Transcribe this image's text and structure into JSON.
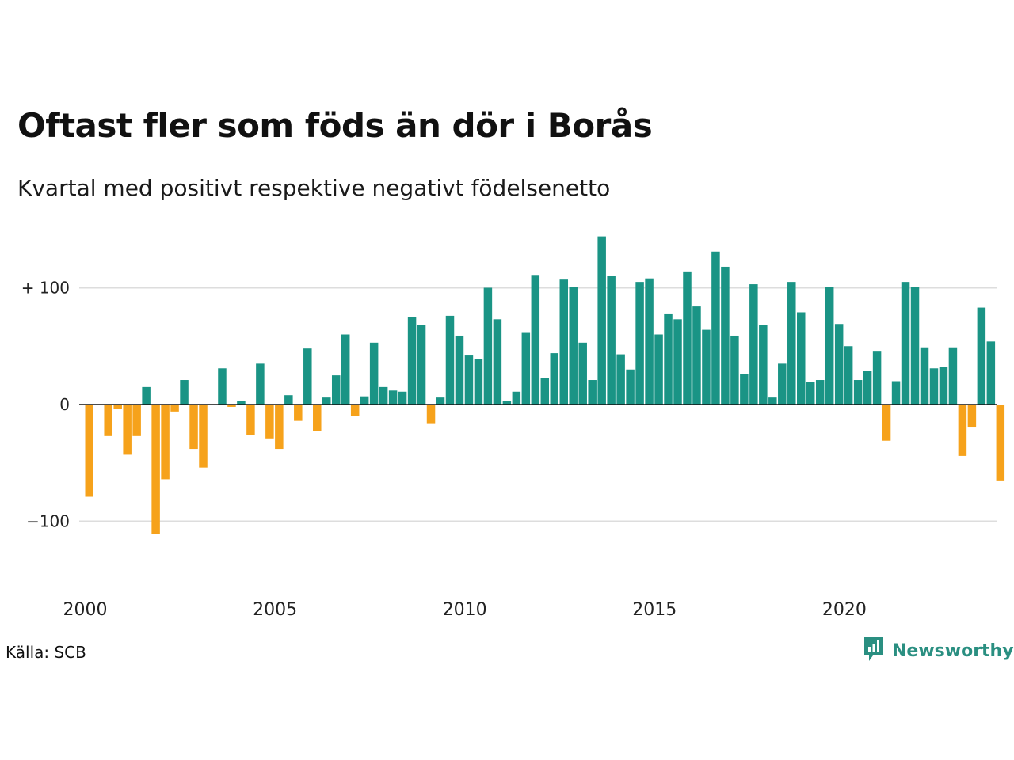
{
  "title": "Oftast fler som föds än dör i Borås",
  "subtitle": "Kvartal med positivt respektive negativt födelsenetto",
  "source": "Källa: SCB",
  "brand": {
    "name": "Newsworthy",
    "icon": "newsworthy-logo-icon"
  },
  "colors": {
    "positive": "#1a9485",
    "negative": "#f6a21b",
    "grid": "#dddddd",
    "zero_line": "#111111"
  },
  "chart_data": {
    "type": "bar",
    "title": "Oftast fler som föds än dör i Borås",
    "subtitle": "Kvartal med positivt respektive negativt födelsenetto",
    "x_start_year": 2000,
    "periods_per_year": 4,
    "x_ticks": [
      "2000",
      "2005",
      "2010",
      "2015",
      "2020"
    ],
    "y_ticks": [
      {
        "value": 100,
        "label": "+ 100"
      },
      {
        "value": 0,
        "label": "0"
      },
      {
        "value": -100,
        "label": "−100"
      }
    ],
    "ylim": [
      -160,
      150
    ],
    "grid": true,
    "values": [
      -79,
      0,
      -27,
      -4,
      -43,
      -27,
      15,
      -111,
      -64,
      -6,
      21,
      -38,
      -54,
      0,
      31,
      -2,
      3,
      -26,
      35,
      -29,
      -38,
      8,
      -14,
      48,
      -23,
      6,
      25,
      60,
      -10,
      7,
      53,
      15,
      12,
      11,
      75,
      68,
      -16,
      6,
      76,
      59,
      42,
      39,
      100,
      73,
      3,
      11,
      62,
      111,
      23,
      44,
      107,
      101,
      53,
      21,
      144,
      110,
      43,
      30,
      105,
      108,
      60,
      78,
      73,
      114,
      84,
      64,
      131,
      118,
      59,
      26,
      103,
      68,
      6,
      35,
      105,
      79,
      19,
      21,
      101,
      69,
      50,
      21,
      29,
      46,
      -31,
      20,
      105,
      101,
      49,
      31,
      32,
      49,
      -44,
      -19,
      83,
      54,
      -65
    ]
  }
}
